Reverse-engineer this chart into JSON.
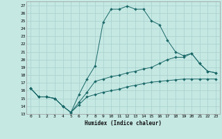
{
  "xlabel": "Humidex (Indice chaleur)",
  "xlim": [
    -0.5,
    23.5
  ],
  "ylim": [
    13,
    27.5
  ],
  "yticks": [
    13,
    14,
    15,
    16,
    17,
    18,
    19,
    20,
    21,
    22,
    23,
    24,
    25,
    26,
    27
  ],
  "xticks": [
    0,
    1,
    2,
    3,
    4,
    5,
    6,
    7,
    8,
    9,
    10,
    11,
    12,
    13,
    14,
    15,
    16,
    17,
    18,
    19,
    20,
    21,
    22,
    23
  ],
  "bg_color": "#c5e8e3",
  "grid_color": "#a8d0cc",
  "line_color": "#1a6868",
  "line1_x": [
    0,
    1,
    2,
    3,
    4,
    5,
    6,
    7,
    8,
    9,
    10,
    11,
    12,
    13,
    14,
    15,
    16,
    17,
    18,
    19,
    20,
    21,
    22,
    23
  ],
  "line1_y": [
    16.3,
    15.2,
    15.2,
    15.0,
    14.0,
    13.2,
    14.2,
    15.2,
    15.5,
    15.8,
    16.0,
    16.2,
    16.5,
    16.7,
    16.9,
    17.1,
    17.2,
    17.3,
    17.4,
    17.5,
    17.5,
    17.5,
    17.5,
    17.5
  ],
  "line2_x": [
    0,
    1,
    2,
    3,
    4,
    5,
    6,
    7,
    8,
    9,
    10,
    11,
    12,
    13,
    14,
    15,
    16,
    17,
    18,
    19,
    20,
    21,
    22,
    23
  ],
  "line2_y": [
    16.3,
    15.2,
    15.2,
    15.0,
    14.0,
    13.2,
    15.5,
    17.5,
    19.2,
    24.8,
    26.5,
    26.5,
    26.9,
    26.5,
    26.5,
    25.0,
    24.5,
    22.5,
    21.0,
    20.5,
    20.8,
    19.5,
    18.5,
    18.3
  ],
  "line3_x": [
    0,
    1,
    2,
    3,
    4,
    5,
    6,
    7,
    8,
    9,
    10,
    11,
    12,
    13,
    14,
    15,
    16,
    17,
    18,
    19,
    20,
    21,
    22,
    23
  ],
  "line3_y": [
    16.3,
    15.2,
    15.2,
    15.0,
    14.0,
    13.2,
    14.5,
    15.8,
    17.2,
    17.5,
    17.8,
    18.0,
    18.3,
    18.5,
    18.8,
    19.0,
    19.5,
    20.0,
    20.3,
    20.3,
    20.8,
    19.5,
    18.5,
    18.3
  ]
}
